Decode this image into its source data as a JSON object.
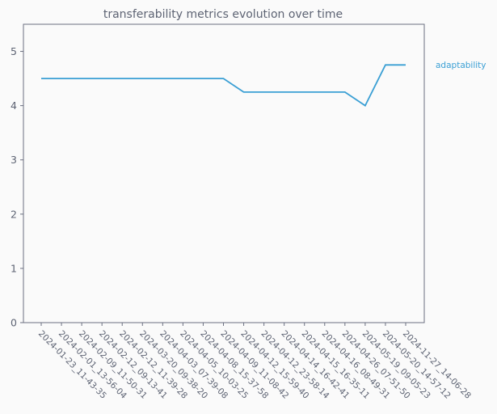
{
  "chart_data": {
    "type": "line",
    "title": "transferability metrics evolution over time",
    "xlabel": "",
    "ylabel": "",
    "x": [
      "2024-01-23 11:43:35",
      "2024-02-01 13:56:04",
      "2024-02-09 11:50:31",
      "2024-02-12 09:13:41",
      "2024-02-12 11:39:28",
      "2024-03-20 09:38:20",
      "2024-04-03 07:39:08",
      "2024-04-05 10:03:25",
      "2024-04-08 15:37:58",
      "2024-04-09 11:08:42",
      "2024-04-12 15:59:40",
      "2024-04-12 23:58:14",
      "2024-04-14 16:42:41",
      "2024-04-15 16:35:11",
      "2024-04-16 08:49:31",
      "2024-04-26 07:51:50",
      "2024-05-19 09:05:23",
      "2024-05-20 14:57:12",
      "2024-11-27 14:06:28"
    ],
    "series": [
      {
        "name": "adaptability",
        "values": [
          4.5,
          4.5,
          4.5,
          4.5,
          4.5,
          4.5,
          4.5,
          4.5,
          4.5,
          4.5,
          4.25,
          4.25,
          4.25,
          4.25,
          4.25,
          4.25,
          4.0,
          4.75,
          4.75
        ],
        "color": "#3a9fd4"
      }
    ],
    "ylim": [
      0,
      5.5
    ],
    "yticks": [
      0,
      1,
      2,
      3,
      4,
      5
    ],
    "grid": false,
    "legend": "right"
  },
  "colors": {
    "background": "#fafafa",
    "text": "#5d6373",
    "axis": "#6b6f80"
  }
}
